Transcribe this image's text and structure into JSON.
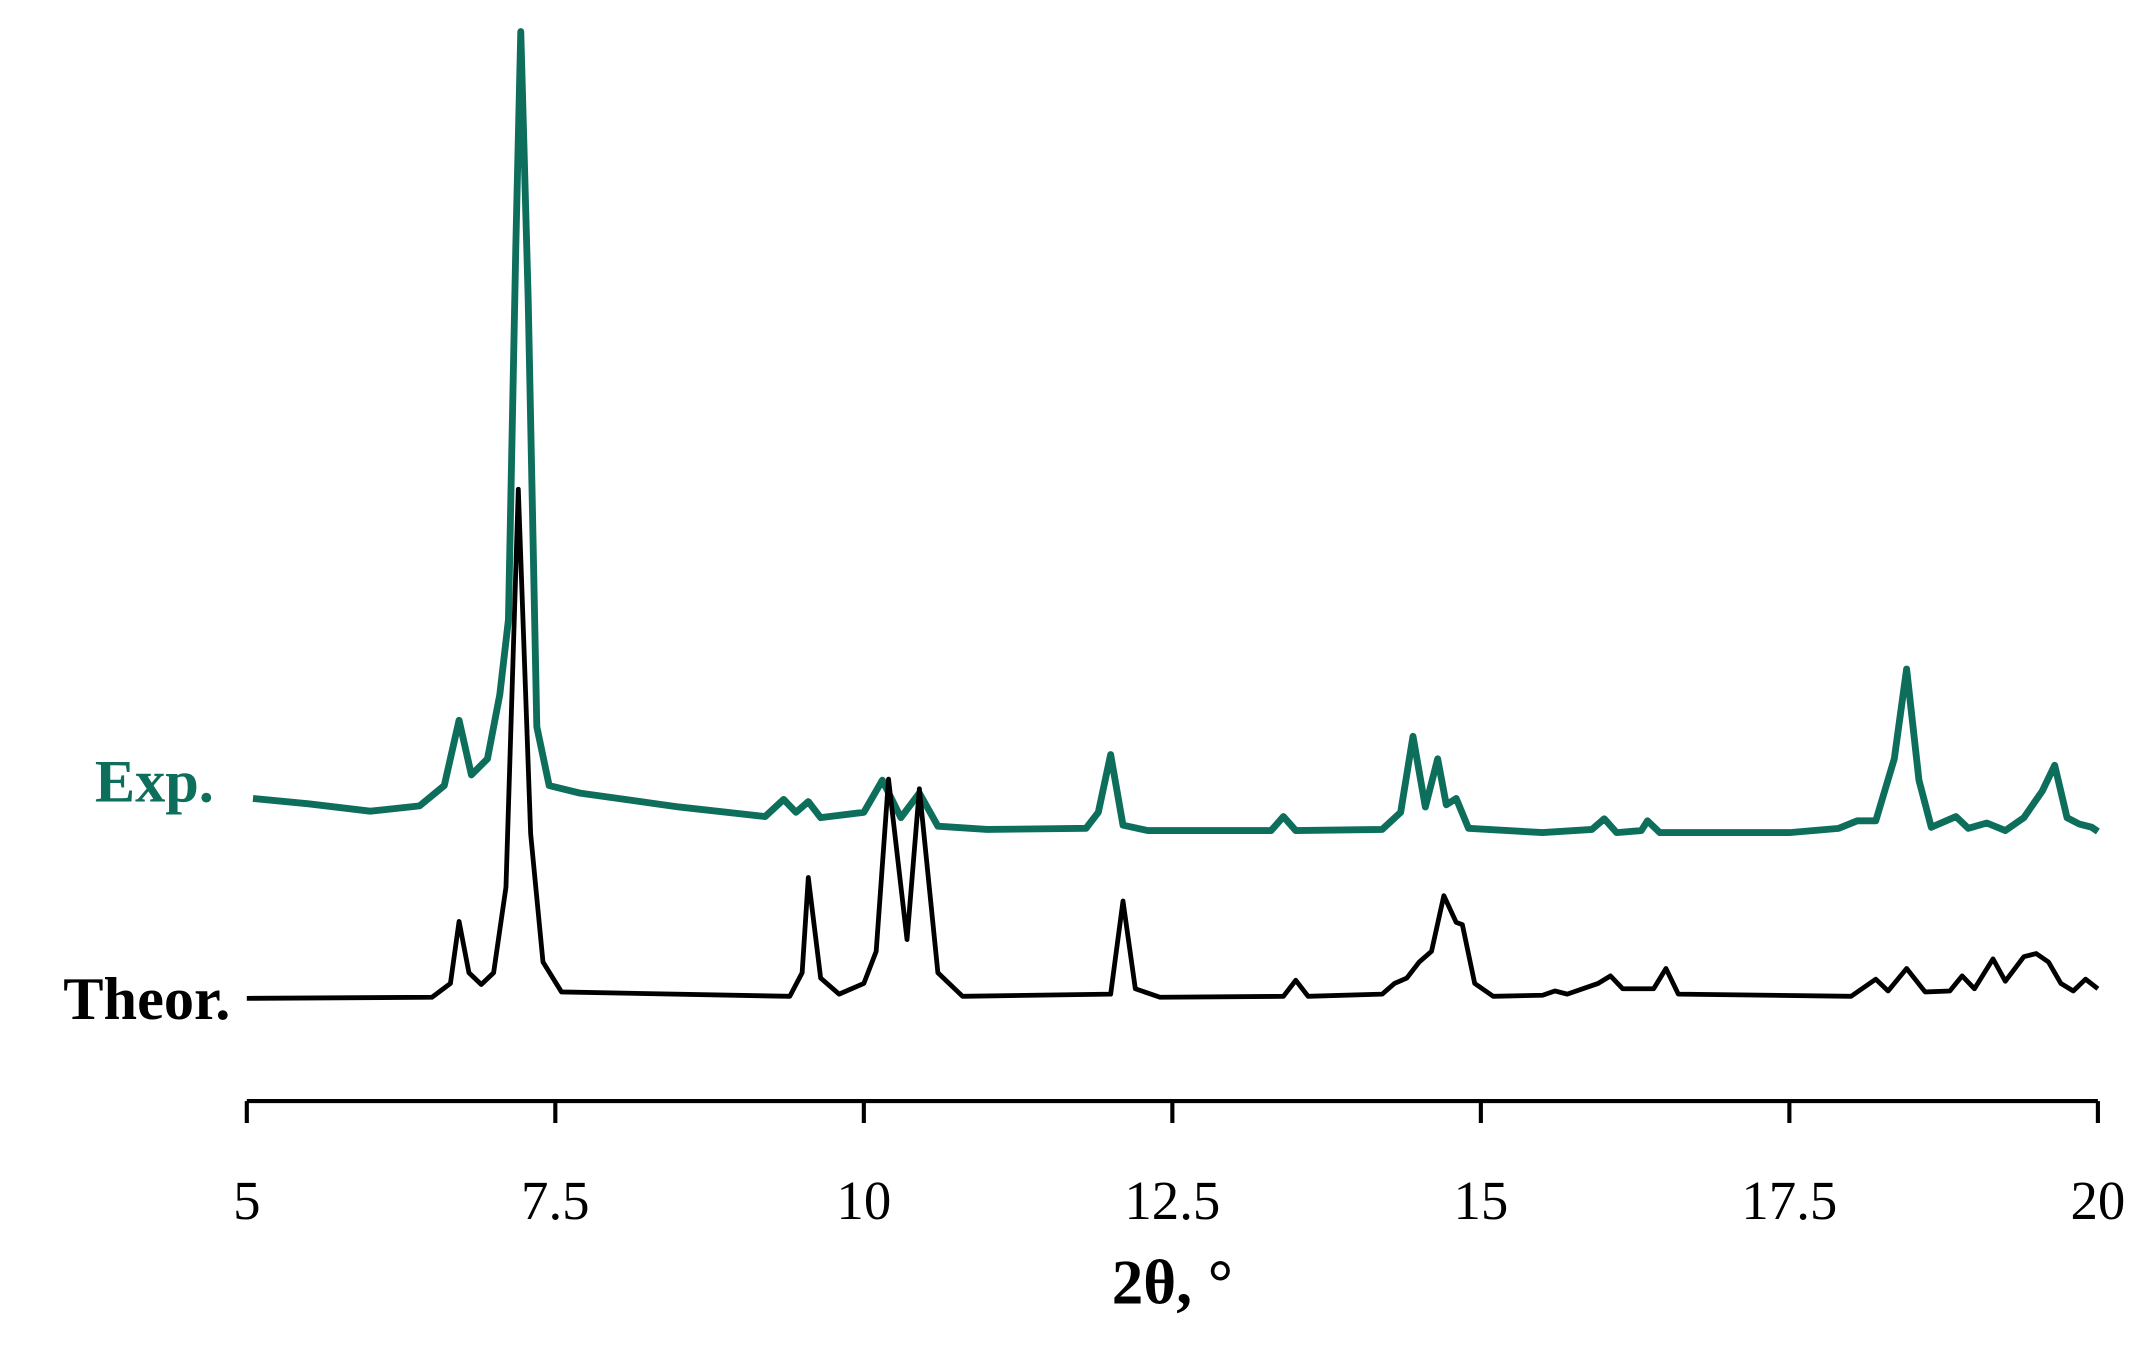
{
  "chart_data": {
    "type": "line",
    "x_label": "2θ, °",
    "xlim": [
      5,
      20
    ],
    "xticks": [
      5,
      7.5,
      10,
      12.5,
      15,
      17.5,
      20
    ],
    "ylim": [
      0,
      100
    ],
    "series": [
      {
        "name": "Exp.",
        "color": "#0e6e5c",
        "x": [
          5.05,
          5.5,
          6.0,
          6.4,
          6.6,
          6.72,
          6.82,
          6.95,
          7.05,
          7.12,
          7.18,
          7.22,
          7.28,
          7.35,
          7.45,
          7.7,
          8.5,
          9.2,
          9.35,
          9.45,
          9.55,
          9.65,
          10.0,
          10.15,
          10.3,
          10.45,
          10.6,
          11.0,
          11.8,
          11.9,
          12.0,
          12.1,
          12.3,
          13.3,
          13.4,
          13.5,
          14.2,
          14.35,
          14.45,
          14.55,
          14.65,
          14.72,
          14.8,
          14.9,
          15.5,
          15.9,
          16.0,
          16.1,
          16.3,
          16.35,
          16.45,
          17.5,
          17.9,
          18.05,
          18.2,
          18.35,
          18.45,
          18.55,
          18.65,
          18.85,
          18.95,
          19.1,
          19.25,
          19.4,
          19.55,
          19.65,
          19.75,
          19.85,
          19.95,
          20.0
        ],
        "values": [
          28.3,
          27.8,
          27.1,
          27.6,
          29.5,
          35.6,
          30.5,
          32,
          38,
          45,
          80,
          100,
          75,
          35,
          29.5,
          28.8,
          27.5,
          26.6,
          28.2,
          27,
          28,
          26.5,
          27,
          30,
          26.5,
          28.8,
          25.7,
          25.4,
          25.5,
          27,
          32.4,
          25.8,
          25.3,
          25.3,
          26.6,
          25.3,
          25.4,
          27,
          34.1,
          27.5,
          32,
          27.7,
          28.3,
          25.5,
          25.1,
          25.4,
          26.4,
          25.1,
          25.3,
          26.2,
          25.1,
          25.1,
          25.5,
          26.2,
          26.2,
          32,
          40.4,
          30,
          25.6,
          26.6,
          25.5,
          26,
          25.3,
          26.5,
          29,
          31.4,
          26.5,
          25.9,
          25.6,
          25.2
        ]
      },
      {
        "name": "Theor.",
        "color": "#000000",
        "x": [
          5.0,
          6.5,
          6.65,
          6.72,
          6.8,
          6.9,
          7.0,
          7.1,
          7.2,
          7.3,
          7.4,
          7.55,
          9.4,
          9.5,
          9.55,
          9.65,
          9.8,
          10.0,
          10.1,
          10.2,
          10.35,
          10.45,
          10.6,
          10.8,
          12.0,
          12.1,
          12.2,
          12.4,
          13.4,
          13.5,
          13.6,
          14.2,
          14.3,
          14.4,
          14.5,
          14.6,
          14.7,
          14.8,
          14.85,
          14.95,
          15.1,
          15.5,
          15.6,
          15.7,
          15.95,
          16.05,
          16.15,
          16.4,
          16.5,
          16.6,
          18.0,
          18.2,
          18.3,
          18.45,
          18.6,
          18.8,
          18.9,
          19.0,
          19.15,
          19.25,
          19.4,
          19.5,
          19.6,
          19.7,
          19.8,
          19.9,
          20.0
        ],
        "values": [
          9.6,
          9.7,
          11,
          16.8,
          12,
          10.9,
          12,
          20,
          57.2,
          25,
          13,
          10.2,
          9.8,
          12,
          20.9,
          11.5,
          10,
          11,
          14,
          30.1,
          15.1,
          29.2,
          12,
          9.8,
          10,
          18.7,
          10.5,
          9.7,
          9.8,
          11.3,
          9.8,
          10,
          11,
          11.5,
          13,
          14,
          19.2,
          16.7,
          16.5,
          11,
          9.8,
          9.9,
          10.3,
          10,
          11,
          11.7,
          10.5,
          10.5,
          12.4,
          10,
          9.8,
          11.4,
          10.3,
          12.4,
          10.2,
          10.3,
          11.7,
          10.5,
          13.3,
          11.2,
          13.5,
          13.8,
          13,
          11,
          10.3,
          11.4,
          10.5
        ]
      }
    ]
  }
}
